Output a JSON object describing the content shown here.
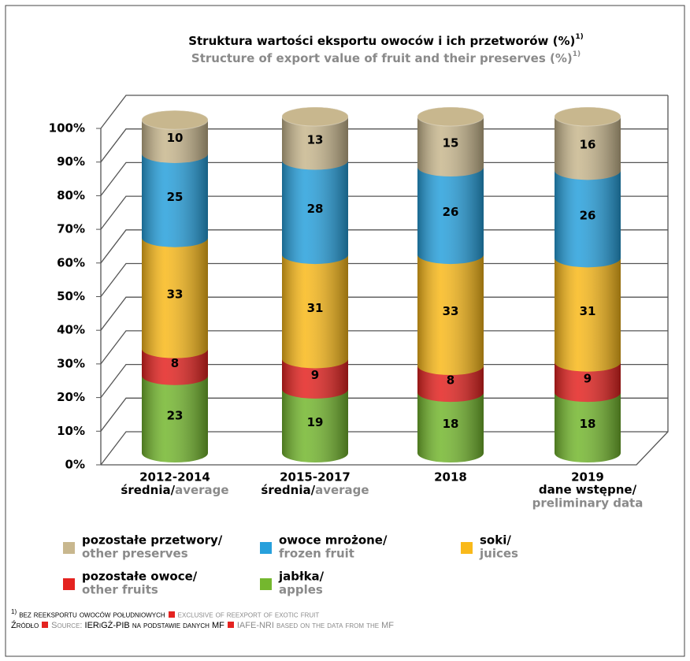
{
  "chart_data": {
    "type": "bar3d-stacked",
    "title": "Struktura wartości eksportu owoców i ich przetworów (%)",
    "subtitle": "Structure of export value of fruit and their preserves (%)",
    "footnote_marker": "1)",
    "categories": [
      "2012-2014",
      "2015-2017",
      "2018",
      "2019"
    ],
    "category_notes": [
      {
        "pl": "średnia/",
        "en": "average"
      },
      {
        "pl": "średnia/",
        "en": "average"
      },
      null,
      {
        "pl": "dane wstępne/",
        "en": "preliminary data"
      }
    ],
    "series": [
      {
        "name": "jabłka/",
        "name_en": "apples",
        "color": "#74b72e",
        "values": [
          23,
          19,
          18,
          18
        ]
      },
      {
        "name": "pozostałe owoce/",
        "name_en": "other fruits",
        "color": "#e42320",
        "values": [
          8,
          9,
          8,
          9
        ]
      },
      {
        "name": "soki/",
        "name_en": "juices",
        "color": "#f9b91a",
        "values": [
          33,
          31,
          33,
          31
        ]
      },
      {
        "name": "owoce mrożone/",
        "name_en": "frozen fruit",
        "color": "#27a0dc",
        "values": [
          25,
          28,
          26,
          26
        ]
      },
      {
        "name": "pozostałe przetwory/",
        "name_en": "other preserves",
        "color": "#c8b78e",
        "values": [
          10,
          13,
          15,
          16
        ]
      }
    ],
    "ylim": [
      0,
      100
    ],
    "yticks": [
      {
        "value": 0,
        "label": "0%"
      },
      {
        "value": 10,
        "label": "10%"
      },
      {
        "value": 20,
        "label": "20%"
      },
      {
        "value": 30,
        "label": "30%"
      },
      {
        "value": 40,
        "label": "40%"
      },
      {
        "value": 50,
        "label": "50%"
      },
      {
        "value": 60,
        "label": "60%"
      },
      {
        "value": 70,
        "label": "70%"
      },
      {
        "value": 80,
        "label": "80%"
      },
      {
        "value": 90,
        "label": "90%"
      },
      {
        "value": 100,
        "label": "100%"
      }
    ],
    "grid": true,
    "footnotes": {
      "marker": "1)",
      "pl": "bez reeksportu owoców południowych",
      "en": "exclusive of reexport of exotic fruit"
    },
    "source": {
      "pl_label": "Źródło",
      "en_label": "Source:",
      "pl": "IERiGŻ-PIB na podstawie danych MF",
      "en": "IAFE-NRI based on the data from the MF"
    }
  }
}
